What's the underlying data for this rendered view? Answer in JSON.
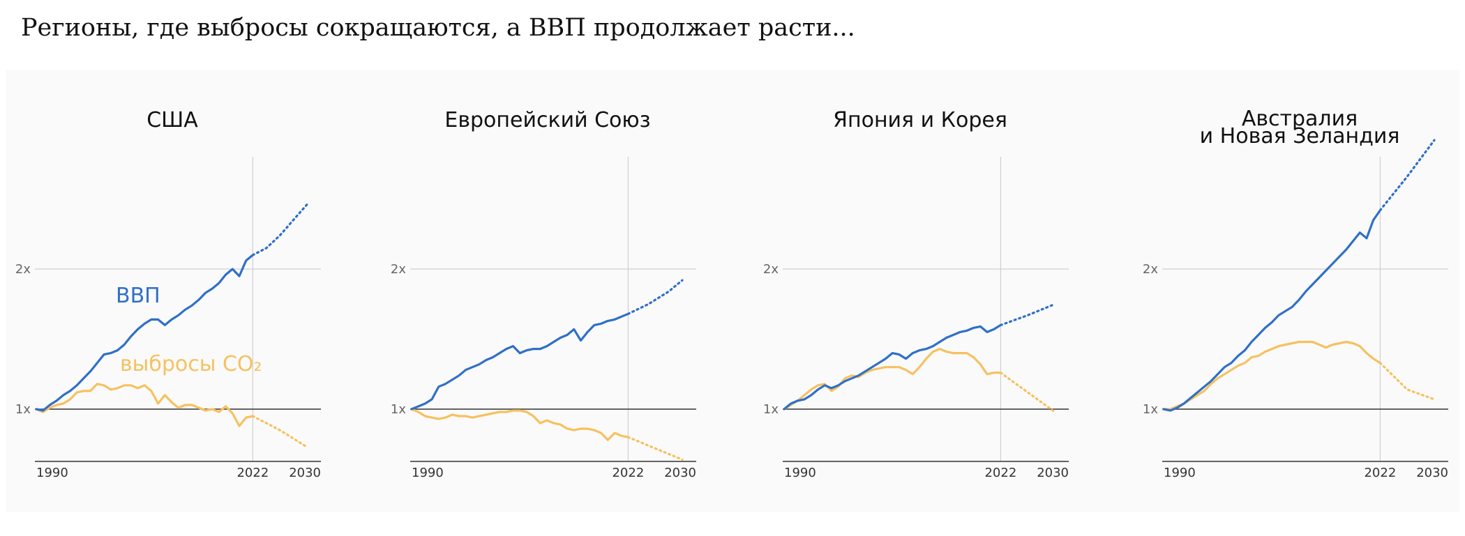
{
  "page_title": "Регионы, где выбросы сокращаются, а ВВП продолжает расти...",
  "colors": {
    "gdp": "#2f6fc9",
    "co2": "#f6c15f",
    "grid": "#cfcfcf",
    "baseline": "#333333",
    "background": "#fafafa"
  },
  "chart_data": [
    {
      "type": "line",
      "title": [
        "США"
      ],
      "x_ticks": [
        "1990",
        "2022",
        "2030"
      ],
      "y_ticks": [
        "1x",
        "2x"
      ],
      "xlim": [
        1990,
        2030
      ],
      "ylim": [
        0.64,
        2.92
      ],
      "series": [
        {
          "name": "ВВП",
          "label": "ВВП",
          "color": "#2f6fc9",
          "x": [
            1990,
            1991,
            1992,
            1993,
            1994,
            1995,
            1996,
            1997,
            1998,
            1999,
            2000,
            2001,
            2002,
            2003,
            2004,
            2005,
            2006,
            2007,
            2008,
            2009,
            2010,
            2011,
            2012,
            2013,
            2014,
            2015,
            2016,
            2017,
            2018,
            2019,
            2020,
            2021,
            2022
          ],
          "y": [
            1.0,
            0.99,
            1.03,
            1.06,
            1.1,
            1.13,
            1.17,
            1.22,
            1.27,
            1.33,
            1.39,
            1.4,
            1.42,
            1.46,
            1.52,
            1.57,
            1.61,
            1.64,
            1.64,
            1.6,
            1.64,
            1.67,
            1.71,
            1.74,
            1.78,
            1.83,
            1.86,
            1.9,
            1.96,
            2.0,
            1.95,
            2.06,
            2.1
          ],
          "projection": {
            "x": [
              2022,
              2024,
              2026,
              2028,
              2030
            ],
            "y": [
              2.1,
              2.15,
              2.24,
              2.35,
              2.46
            ]
          }
        },
        {
          "name": "выбросы CO₂",
          "label": "выбросы CO₂",
          "color": "#f6c15f",
          "x": [
            1990,
            1991,
            1992,
            1993,
            1994,
            1995,
            1996,
            1997,
            1998,
            1999,
            2000,
            2001,
            2002,
            2003,
            2004,
            2005,
            2006,
            2007,
            2008,
            2009,
            2010,
            2011,
            2012,
            2013,
            2014,
            2015,
            2016,
            2017,
            2018,
            2019,
            2020,
            2021,
            2022
          ],
          "y": [
            1.0,
            0.98,
            1.01,
            1.03,
            1.04,
            1.07,
            1.12,
            1.13,
            1.13,
            1.18,
            1.17,
            1.14,
            1.15,
            1.17,
            1.17,
            1.15,
            1.17,
            1.13,
            1.04,
            1.1,
            1.05,
            1.01,
            1.03,
            1.03,
            1.01,
            0.99,
            1.0,
            0.98,
            1.02,
            0.97,
            0.88,
            0.94,
            0.95
          ],
          "projection": {
            "x": [
              2022,
              2026,
              2030
            ],
            "y": [
              0.95,
              0.85,
              0.73
            ]
          }
        }
      ]
    },
    {
      "type": "line",
      "title": [
        "Европейский Союз"
      ],
      "x_ticks": [
        "1990",
        "2022",
        "2030"
      ],
      "y_ticks": [
        "1x",
        "2x"
      ],
      "xlim": [
        1990,
        2030
      ],
      "ylim": [
        0.64,
        2.92
      ],
      "series": [
        {
          "name": "ВВП",
          "color": "#2f6fc9",
          "x": [
            1990,
            1991,
            1992,
            1993,
            1994,
            1995,
            1996,
            1997,
            1998,
            1999,
            2000,
            2001,
            2002,
            2003,
            2004,
            2005,
            2006,
            2007,
            2008,
            2009,
            2010,
            2011,
            2012,
            2013,
            2014,
            2015,
            2016,
            2017,
            2018,
            2019,
            2020,
            2021,
            2022
          ],
          "y": [
            1.0,
            1.02,
            1.04,
            1.07,
            1.16,
            1.18,
            1.21,
            1.24,
            1.28,
            1.3,
            1.32,
            1.35,
            1.37,
            1.4,
            1.43,
            1.45,
            1.4,
            1.42,
            1.43,
            1.43,
            1.45,
            1.48,
            1.51,
            1.53,
            1.57,
            1.49,
            1.55,
            1.6,
            1.61,
            1.63,
            1.64,
            1.66,
            1.68
          ],
          "projection": {
            "x": [
              2022,
              2025,
              2028,
              2030
            ],
            "y": [
              1.68,
              1.75,
              1.84,
              1.92
            ]
          }
        },
        {
          "name": "выбросы CO₂",
          "color": "#f6c15f",
          "x": [
            1990,
            1991,
            1992,
            1993,
            1994,
            1995,
            1996,
            1997,
            1998,
            1999,
            2000,
            2001,
            2002,
            2003,
            2004,
            2005,
            2006,
            2007,
            2008,
            2009,
            2010,
            2011,
            2012,
            2013,
            2014,
            2015,
            2016,
            2017,
            2018,
            2019,
            2020,
            2021,
            2022
          ],
          "y": [
            1.0,
            0.98,
            0.95,
            0.94,
            0.93,
            0.94,
            0.96,
            0.95,
            0.95,
            0.94,
            0.95,
            0.96,
            0.97,
            0.98,
            0.98,
            0.99,
            0.99,
            0.98,
            0.95,
            0.9,
            0.92,
            0.9,
            0.89,
            0.86,
            0.85,
            0.86,
            0.86,
            0.85,
            0.83,
            0.78,
            0.83,
            0.81,
            0.8
          ],
          "projection": {
            "x": [
              2022,
              2026,
              2030
            ],
            "y": [
              0.8,
              0.72,
              0.64
            ]
          }
        }
      ]
    },
    {
      "type": "line",
      "title": [
        "Япония и Корея"
      ],
      "x_ticks": [
        "1990",
        "2022",
        "2030"
      ],
      "y_ticks": [
        "1x",
        "2x"
      ],
      "xlim": [
        1990,
        2030
      ],
      "ylim": [
        0.64,
        2.92
      ],
      "series": [
        {
          "name": "ВВП",
          "color": "#2f6fc9",
          "x": [
            1990,
            1991,
            1992,
            1993,
            1994,
            1995,
            1996,
            1997,
            1998,
            1999,
            2000,
            2001,
            2002,
            2003,
            2004,
            2005,
            2006,
            2007,
            2008,
            2009,
            2010,
            2011,
            2012,
            2013,
            2014,
            2015,
            2016,
            2017,
            2018,
            2019,
            2020,
            2021,
            2022
          ],
          "y": [
            1.0,
            1.04,
            1.06,
            1.07,
            1.1,
            1.14,
            1.17,
            1.15,
            1.17,
            1.2,
            1.22,
            1.24,
            1.27,
            1.3,
            1.33,
            1.36,
            1.4,
            1.39,
            1.36,
            1.4,
            1.42,
            1.43,
            1.45,
            1.48,
            1.51,
            1.53,
            1.55,
            1.56,
            1.58,
            1.59,
            1.55,
            1.57,
            1.6
          ],
          "projection": {
            "x": [
              2022,
              2026,
              2030
            ],
            "y": [
              1.6,
              1.67,
              1.75
            ]
          }
        },
        {
          "name": "выбросы CO₂",
          "color": "#f6c15f",
          "x": [
            1990,
            1991,
            1992,
            1993,
            1994,
            1995,
            1996,
            1997,
            1998,
            1999,
            2000,
            2001,
            2002,
            2003,
            2004,
            2005,
            2006,
            2007,
            2008,
            2009,
            2010,
            2011,
            2012,
            2013,
            2014,
            2015,
            2016,
            2017,
            2018,
            2019,
            2020,
            2021,
            2022
          ],
          "y": [
            1.0,
            1.03,
            1.06,
            1.1,
            1.14,
            1.17,
            1.18,
            1.13,
            1.16,
            1.22,
            1.24,
            1.23,
            1.26,
            1.28,
            1.29,
            1.3,
            1.3,
            1.3,
            1.28,
            1.25,
            1.3,
            1.36,
            1.41,
            1.43,
            1.41,
            1.4,
            1.4,
            1.4,
            1.37,
            1.32,
            1.25,
            1.26,
            1.26
          ],
          "projection": {
            "x": [
              2022,
              2026,
              2030
            ],
            "y": [
              1.26,
              1.12,
              0.98
            ]
          }
        }
      ]
    },
    {
      "type": "line",
      "title": [
        "Австралия",
        "и Новая Зеландия"
      ],
      "x_ticks": [
        "1990",
        "2022",
        "2030"
      ],
      "y_ticks": [
        "1x",
        "2x"
      ],
      "xlim": [
        1990,
        2030
      ],
      "ylim": [
        0.64,
        2.92
      ],
      "series": [
        {
          "name": "ВВП",
          "color": "#2f6fc9",
          "x": [
            1990,
            1991,
            1992,
            1993,
            1994,
            1995,
            1996,
            1997,
            1998,
            1999,
            2000,
            2001,
            2002,
            2003,
            2004,
            2005,
            2006,
            2007,
            2008,
            2009,
            2010,
            2011,
            2012,
            2013,
            2014,
            2015,
            2016,
            2017,
            2018,
            2019,
            2020,
            2021,
            2022
          ],
          "y": [
            1.0,
            0.99,
            1.01,
            1.04,
            1.08,
            1.12,
            1.16,
            1.2,
            1.25,
            1.3,
            1.33,
            1.38,
            1.42,
            1.48,
            1.53,
            1.58,
            1.62,
            1.67,
            1.7,
            1.73,
            1.78,
            1.84,
            1.89,
            1.94,
            1.99,
            2.04,
            2.09,
            2.14,
            2.2,
            2.26,
            2.22,
            2.35,
            2.42
          ],
          "projection": {
            "x": [
              2022,
              2026,
              2030
            ],
            "y": [
              2.42,
              2.66,
              2.92
            ]
          }
        },
        {
          "name": "выбросы CO₂",
          "color": "#f6c15f",
          "x": [
            1990,
            1991,
            1992,
            1993,
            1994,
            1995,
            1996,
            1997,
            1998,
            1999,
            2000,
            2001,
            2002,
            2003,
            2004,
            2005,
            2006,
            2007,
            2008,
            2009,
            2010,
            2011,
            2012,
            2013,
            2014,
            2015,
            2016,
            2017,
            2018,
            2019,
            2020,
            2021,
            2022
          ],
          "y": [
            1.0,
            1.0,
            1.02,
            1.04,
            1.07,
            1.1,
            1.13,
            1.18,
            1.22,
            1.25,
            1.28,
            1.31,
            1.33,
            1.37,
            1.38,
            1.41,
            1.43,
            1.45,
            1.46,
            1.47,
            1.48,
            1.48,
            1.48,
            1.46,
            1.44,
            1.46,
            1.47,
            1.48,
            1.47,
            1.45,
            1.4,
            1.36,
            1.33
          ],
          "projection": {
            "x": [
              2022,
              2026,
              2030
            ],
            "y": [
              1.33,
              1.14,
              1.07
            ]
          }
        }
      ]
    }
  ]
}
